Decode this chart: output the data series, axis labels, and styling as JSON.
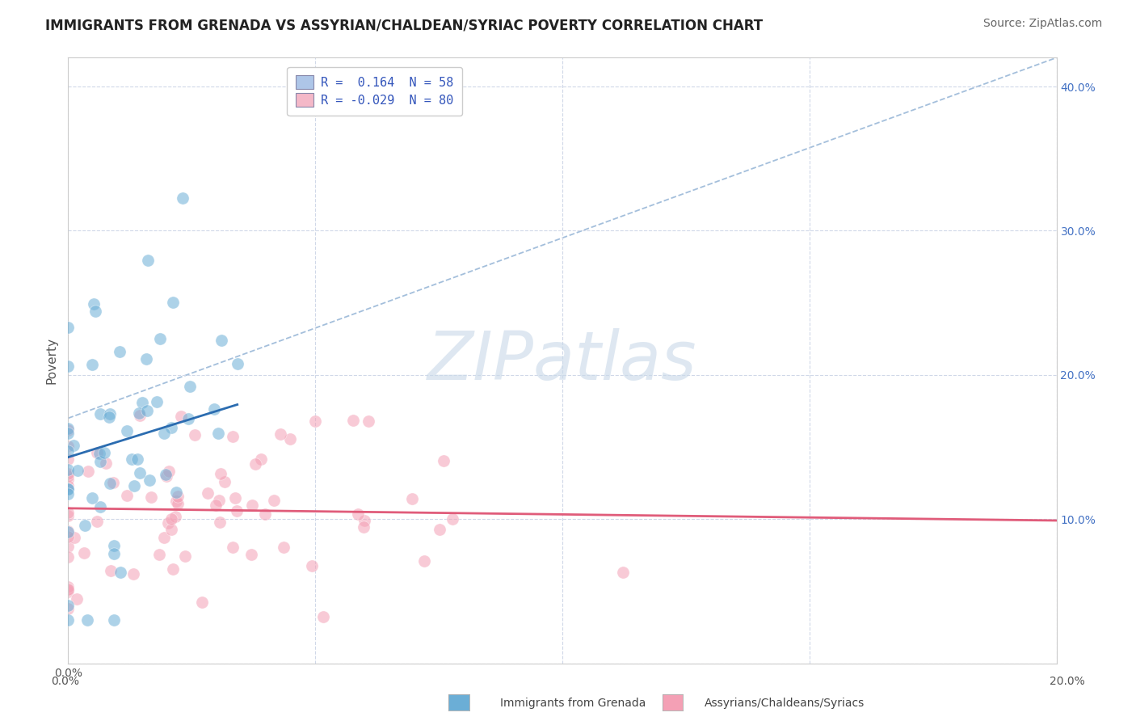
{
  "title": "IMMIGRANTS FROM GRENADA VS ASSYRIAN/CHALDEAN/SYRIAC POVERTY CORRELATION CHART",
  "source": "Source: ZipAtlas.com",
  "ylabel": "Poverty",
  "xlim": [
    0.0,
    0.2
  ],
  "ylim": [
    0.0,
    0.42
  ],
  "yticks": [
    0.0,
    0.1,
    0.2,
    0.3,
    0.4
  ],
  "xticks": [
    0.0,
    0.05,
    0.1,
    0.15,
    0.2
  ],
  "xtick_labels": [
    "0.0%",
    "",
    "",
    "",
    "20.0%"
  ],
  "ytick_labels_right": [
    "",
    "10.0%",
    "20.0%",
    "30.0%",
    "40.0%"
  ],
  "legend_line1": "R =  0.164  N = 58",
  "legend_line2": "R = -0.029  N = 80",
  "legend_color1": "#aec6e8",
  "legend_color2": "#f4b8c8",
  "series1_label": "Immigrants from Grenada",
  "series2_label": "Assyrians/Chaldeans/Syriacs",
  "series1_color": "#6baed6",
  "series2_color": "#f4a0b5",
  "series1_R": 0.164,
  "series1_N": 58,
  "series2_R": -0.029,
  "series2_N": 80,
  "trend1_color": "#2b6cb0",
  "trend2_color": "#e05c7a",
  "diag_line_color": "#9ab8d8",
  "background_color": "#ffffff",
  "grid_color": "#d0d8e8",
  "watermark": "ZIPatlas",
  "watermark_color": "#c8d8e8",
  "title_fontsize": 12,
  "tick_fontsize": 10,
  "legend_fontsize": 11,
  "source_fontsize": 10,
  "scatter_alpha": 0.55,
  "scatter_size": 120,
  "bottom_label1": "Immigrants from Grenada",
  "bottom_label2": "Assyrians/Chaldeans/Syriacs",
  "bottom_label_color1": "#6baed6",
  "bottom_label_color2": "#f4a0b5"
}
